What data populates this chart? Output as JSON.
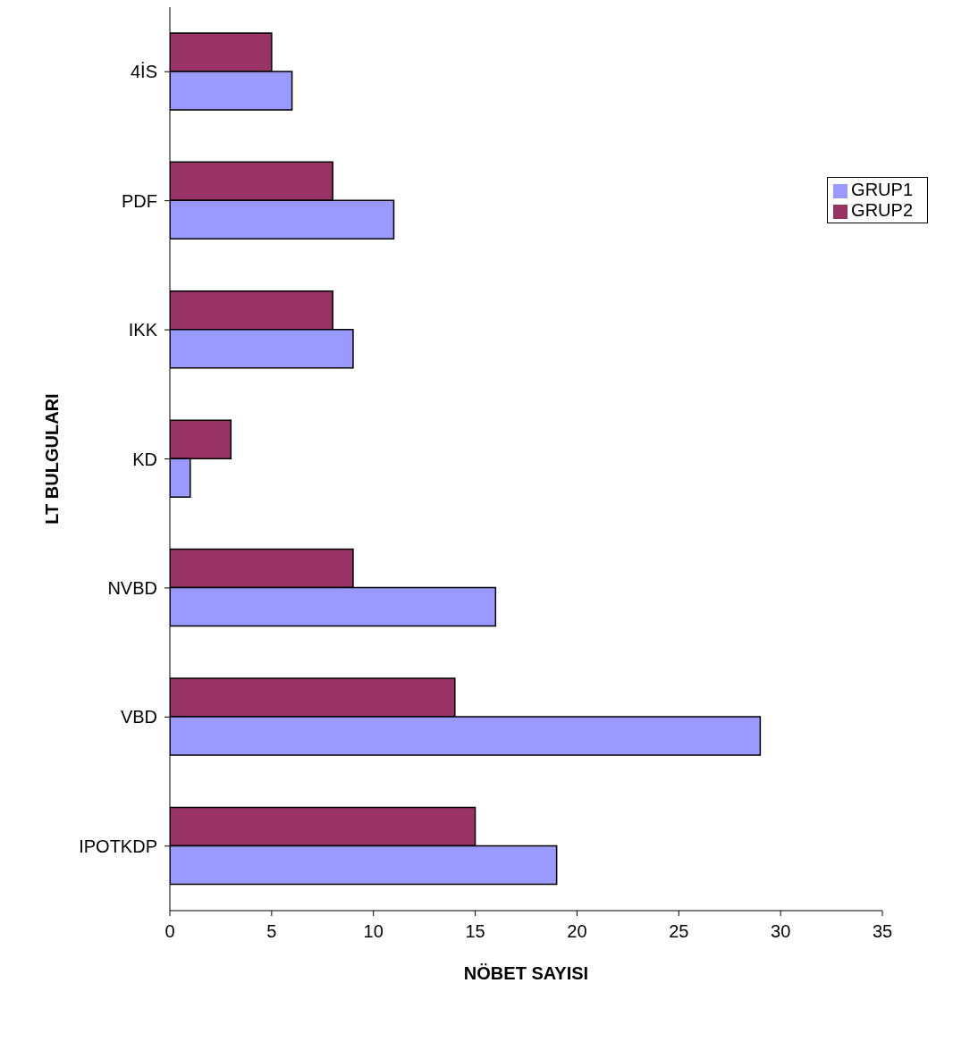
{
  "chart_data": {
    "type": "bar",
    "orientation": "horizontal",
    "xlabel": "NÖBET SAYISI",
    "ylabel": "LT BULGULARI",
    "categories": [
      "4İS",
      "PDF",
      "IKK",
      "KD",
      "NVBD",
      "VBD",
      "IPOTKDP"
    ],
    "series": [
      {
        "name": "GRUP2",
        "color": "#993366",
        "values": [
          5,
          8,
          8,
          3,
          9,
          14,
          15
        ]
      },
      {
        "name": "GRUP1",
        "color": "#9999ff",
        "values": [
          6,
          11,
          9,
          1,
          16,
          29,
          19
        ]
      }
    ],
    "xlim": [
      0,
      35
    ],
    "xticks": [
      0,
      5,
      10,
      15,
      20,
      25,
      30,
      35
    ],
    "grid": false,
    "legend": "right"
  }
}
